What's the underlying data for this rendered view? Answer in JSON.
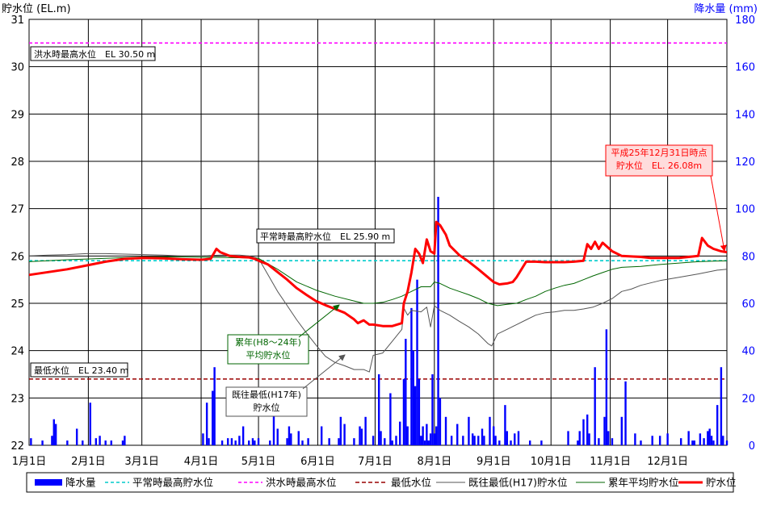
{
  "chart_data": {
    "type": "line",
    "y_left_label": "貯水位 (EL.m)",
    "y_right_label": "降水量 (mm)",
    "y_left_range": [
      22,
      31
    ],
    "y_right_range": [
      0,
      180
    ],
    "y_left_ticks": [
      "22",
      "23",
      "24",
      "25",
      "26",
      "27",
      "28",
      "29",
      "30",
      "31"
    ],
    "y_right_ticks": [
      "0",
      "20",
      "40",
      "60",
      "80",
      "100",
      "120",
      "140",
      "160",
      "180"
    ],
    "x_range": [
      0,
      365
    ],
    "x_ticks": [
      {
        "day": 0,
        "label": "1月1日"
      },
      {
        "day": 31,
        "label": "2月1日"
      },
      {
        "day": 59,
        "label": "3月1日"
      },
      {
        "day": 90,
        "label": "4月1日"
      },
      {
        "day": 120,
        "label": "5月1日"
      },
      {
        "day": 151,
        "label": "6月1日"
      },
      {
        "day": 181,
        "label": "7月1日"
      },
      {
        "day": 212,
        "label": "8月1日"
      },
      {
        "day": 243,
        "label": "9月1日"
      },
      {
        "day": 273,
        "label": "10月1日"
      },
      {
        "day": 304,
        "label": "11月1日"
      },
      {
        "day": 334,
        "label": "12月1日"
      }
    ],
    "grid": true,
    "colors": {
      "rain": "#0000ff",
      "normal_max": "#00cccc",
      "flood_max": "#ff00ff",
      "min_level": "#990000",
      "h17_low": "#555555",
      "avg": "#006600",
      "storage": "#ff0000",
      "left_axis_text": "#000000",
      "right_axis_text": "#0000ff"
    },
    "reference_lines": {
      "normal_max": 25.9,
      "flood_max": 30.5,
      "min_level": 23.4
    },
    "annotations": {
      "flood": "洪水時最高水位　EL 30.50 m",
      "normal": "平常時最高貯水位　EL 25.90 m",
      "min": "最低水位　EL 23.40 m",
      "avg_line1": "累年(H8～24年)",
      "avg_line2": "平均貯水位",
      "low_line1": "既往最低(H17年)",
      "low_line2": "貯水位",
      "current_line1": "平成25年12月31日時点",
      "current_line2": "貯水位　EL. 26.08m"
    },
    "legend": [
      {
        "key": "rain",
        "label": "降水量"
      },
      {
        "key": "normal_max",
        "label": "平常時最高貯水位"
      },
      {
        "key": "flood_max",
        "label": "洪水時最高水位"
      },
      {
        "key": "min_level",
        "label": "最低水位"
      },
      {
        "key": "h17_low",
        "label": "既往最低(H17)貯水位"
      },
      {
        "key": "avg",
        "label": "累年平均貯水位"
      },
      {
        "key": "storage",
        "label": "貯水位"
      }
    ],
    "series": [
      {
        "key": "storage",
        "name": "貯水位",
        "x": [
          0,
          10,
          20,
          30,
          40,
          50,
          60,
          70,
          80,
          90,
          95,
          98,
          100,
          105,
          110,
          115,
          118,
          120,
          125,
          130,
          135,
          140,
          145,
          150,
          155,
          160,
          165,
          170,
          172,
          175,
          178,
          180,
          185,
          190,
          195,
          196,
          198,
          200,
          202,
          204,
          205,
          206,
          208,
          210,
          212,
          213,
          215,
          218,
          220,
          225,
          230,
          235,
          240,
          243,
          246,
          250,
          253,
          255,
          260,
          265,
          270,
          275,
          280,
          285,
          290,
          292,
          294,
          296,
          298,
          300,
          305,
          310,
          315,
          320,
          325,
          330,
          335,
          340,
          345,
          350,
          352,
          355,
          358,
          362,
          365
        ],
        "y": [
          25.6,
          25.66,
          25.72,
          25.8,
          25.88,
          25.94,
          25.96,
          25.95,
          25.93,
          25.92,
          25.94,
          26.15,
          26.08,
          26.0,
          25.98,
          25.97,
          25.94,
          25.9,
          25.82,
          25.66,
          25.5,
          25.32,
          25.18,
          25.05,
          24.96,
          24.88,
          24.8,
          24.66,
          24.58,
          24.64,
          24.55,
          24.55,
          24.52,
          24.52,
          24.58,
          25.0,
          25.25,
          25.65,
          26.15,
          26.05,
          25.95,
          25.85,
          26.35,
          26.1,
          26.05,
          26.72,
          26.65,
          26.45,
          26.22,
          26.02,
          25.88,
          25.72,
          25.55,
          25.45,
          25.4,
          25.42,
          25.45,
          25.55,
          25.88,
          25.88,
          25.87,
          25.87,
          25.87,
          25.88,
          25.9,
          26.25,
          26.15,
          26.3,
          26.15,
          26.28,
          26.1,
          26.0,
          25.99,
          25.98,
          25.96,
          25.96,
          25.96,
          25.96,
          25.98,
          26.0,
          26.38,
          26.22,
          26.15,
          26.1,
          26.08
        ]
      },
      {
        "key": "avg",
        "name": "累年平均貯水位",
        "x": [
          0,
          20,
          40,
          60,
          80,
          100,
          115,
          120,
          130,
          140,
          150,
          160,
          170,
          175,
          180,
          185,
          190,
          195,
          200,
          205,
          210,
          212,
          215,
          220,
          225,
          230,
          235,
          240,
          245,
          250,
          255,
          260,
          265,
          270,
          275,
          280,
          285,
          290,
          295,
          300,
          305,
          310,
          320,
          330,
          340,
          350,
          365
        ],
        "y": [
          25.88,
          25.92,
          25.95,
          25.98,
          25.98,
          25.97,
          25.96,
          25.95,
          25.72,
          25.45,
          25.28,
          25.15,
          25.05,
          25.0,
          25.0,
          25.02,
          25.08,
          25.15,
          25.25,
          25.35,
          25.35,
          25.45,
          25.42,
          25.32,
          25.25,
          25.18,
          25.1,
          25.0,
          24.95,
          24.98,
          25.0,
          25.08,
          25.15,
          25.25,
          25.32,
          25.38,
          25.42,
          25.5,
          25.58,
          25.65,
          25.72,
          25.76,
          25.78,
          25.82,
          25.85,
          25.88,
          25.9
        ]
      },
      {
        "key": "h17_low",
        "name": "既往最低(H17)貯水位",
        "x": [
          0,
          10,
          20,
          30,
          40,
          50,
          60,
          70,
          80,
          90,
          100,
          110,
          115,
          120,
          125,
          130,
          135,
          140,
          145,
          150,
          155,
          160,
          165,
          170,
          175,
          178,
          180,
          185,
          190,
          195,
          196,
          198,
          200,
          205,
          208,
          210,
          212,
          215,
          220,
          225,
          230,
          235,
          240,
          242,
          245,
          250,
          255,
          260,
          265,
          270,
          275,
          280,
          285,
          290,
          295,
          300,
          305,
          310,
          315,
          320,
          330,
          340,
          350,
          360,
          365
        ],
        "y": [
          26.0,
          26.02,
          26.03,
          26.05,
          26.05,
          26.04,
          26.03,
          26.02,
          26.0,
          26.0,
          26.02,
          26.02,
          26.0,
          25.95,
          25.6,
          25.25,
          24.95,
          24.65,
          24.38,
          24.12,
          23.88,
          23.75,
          23.68,
          23.6,
          23.6,
          23.55,
          23.9,
          23.95,
          24.2,
          24.45,
          24.9,
          24.75,
          24.85,
          24.82,
          24.92,
          24.5,
          24.95,
          24.85,
          24.75,
          24.62,
          24.5,
          24.35,
          24.15,
          24.1,
          24.35,
          24.45,
          24.55,
          24.65,
          24.75,
          24.8,
          24.82,
          24.85,
          24.85,
          24.88,
          24.92,
          25.0,
          25.1,
          25.25,
          25.3,
          25.38,
          25.48,
          25.55,
          25.62,
          25.7,
          25.72
        ]
      },
      {
        "key": "rain",
        "name": "降水量",
        "x": [
          1,
          7,
          12,
          13,
          14,
          20,
          25,
          28,
          32,
          35,
          37,
          40,
          43,
          49,
          50,
          91,
          93,
          94,
          96,
          97,
          101,
          104,
          106,
          108,
          110,
          112,
          115,
          117,
          118,
          120,
          126,
          128,
          130,
          135,
          136,
          137,
          141,
          143,
          146,
          153,
          157,
          162,
          163,
          165,
          170,
          173,
          174,
          176,
          180,
          183,
          184,
          186,
          189,
          190,
          192,
          194,
          196,
          197,
          198,
          200,
          201,
          202,
          203,
          204,
          205,
          206,
          207,
          208,
          209,
          210,
          211,
          212,
          213,
          214,
          215,
          218,
          221,
          224,
          227,
          230,
          232,
          233,
          235,
          237,
          238,
          241,
          243,
          244,
          246,
          249,
          250,
          252,
          254,
          256,
          262,
          268,
          282,
          287,
          288,
          290,
          292,
          293,
          296,
          298,
          301,
          302,
          303,
          305,
          310,
          312,
          317,
          320,
          326,
          330,
          334,
          341,
          345,
          347,
          348,
          351,
          353,
          355,
          356,
          357,
          358,
          360,
          362,
          363,
          365
        ],
        "values": [
          3,
          2,
          4,
          11,
          9,
          2,
          7,
          2,
          18,
          3,
          4,
          2,
          2,
          2,
          4,
          5,
          18,
          3,
          23,
          33,
          2,
          3,
          3,
          2,
          4,
          8,
          2,
          3,
          2,
          3,
          2,
          14,
          7,
          3,
          8,
          5,
          6,
          2,
          3,
          8,
          3,
          3,
          12,
          9,
          3,
          8,
          7,
          12,
          4,
          30,
          6,
          3,
          22,
          2,
          4,
          10,
          28,
          45,
          8,
          58,
          40,
          25,
          70,
          28,
          4,
          8,
          2,
          9,
          2,
          5,
          30,
          5,
          8,
          105,
          20,
          12,
          4,
          9,
          4,
          12,
          5,
          4,
          4,
          7,
          4,
          12,
          8,
          4,
          2,
          17,
          6,
          2,
          5,
          6,
          2,
          2,
          6,
          2,
          6,
          11,
          13,
          5,
          33,
          3,
          12,
          49,
          6,
          3,
          12,
          27,
          5,
          2,
          4,
          4,
          5,
          3,
          6,
          2,
          2,
          5,
          3,
          6,
          7,
          4,
          2,
          17,
          33,
          4,
          2
        ]
      }
    ]
  }
}
